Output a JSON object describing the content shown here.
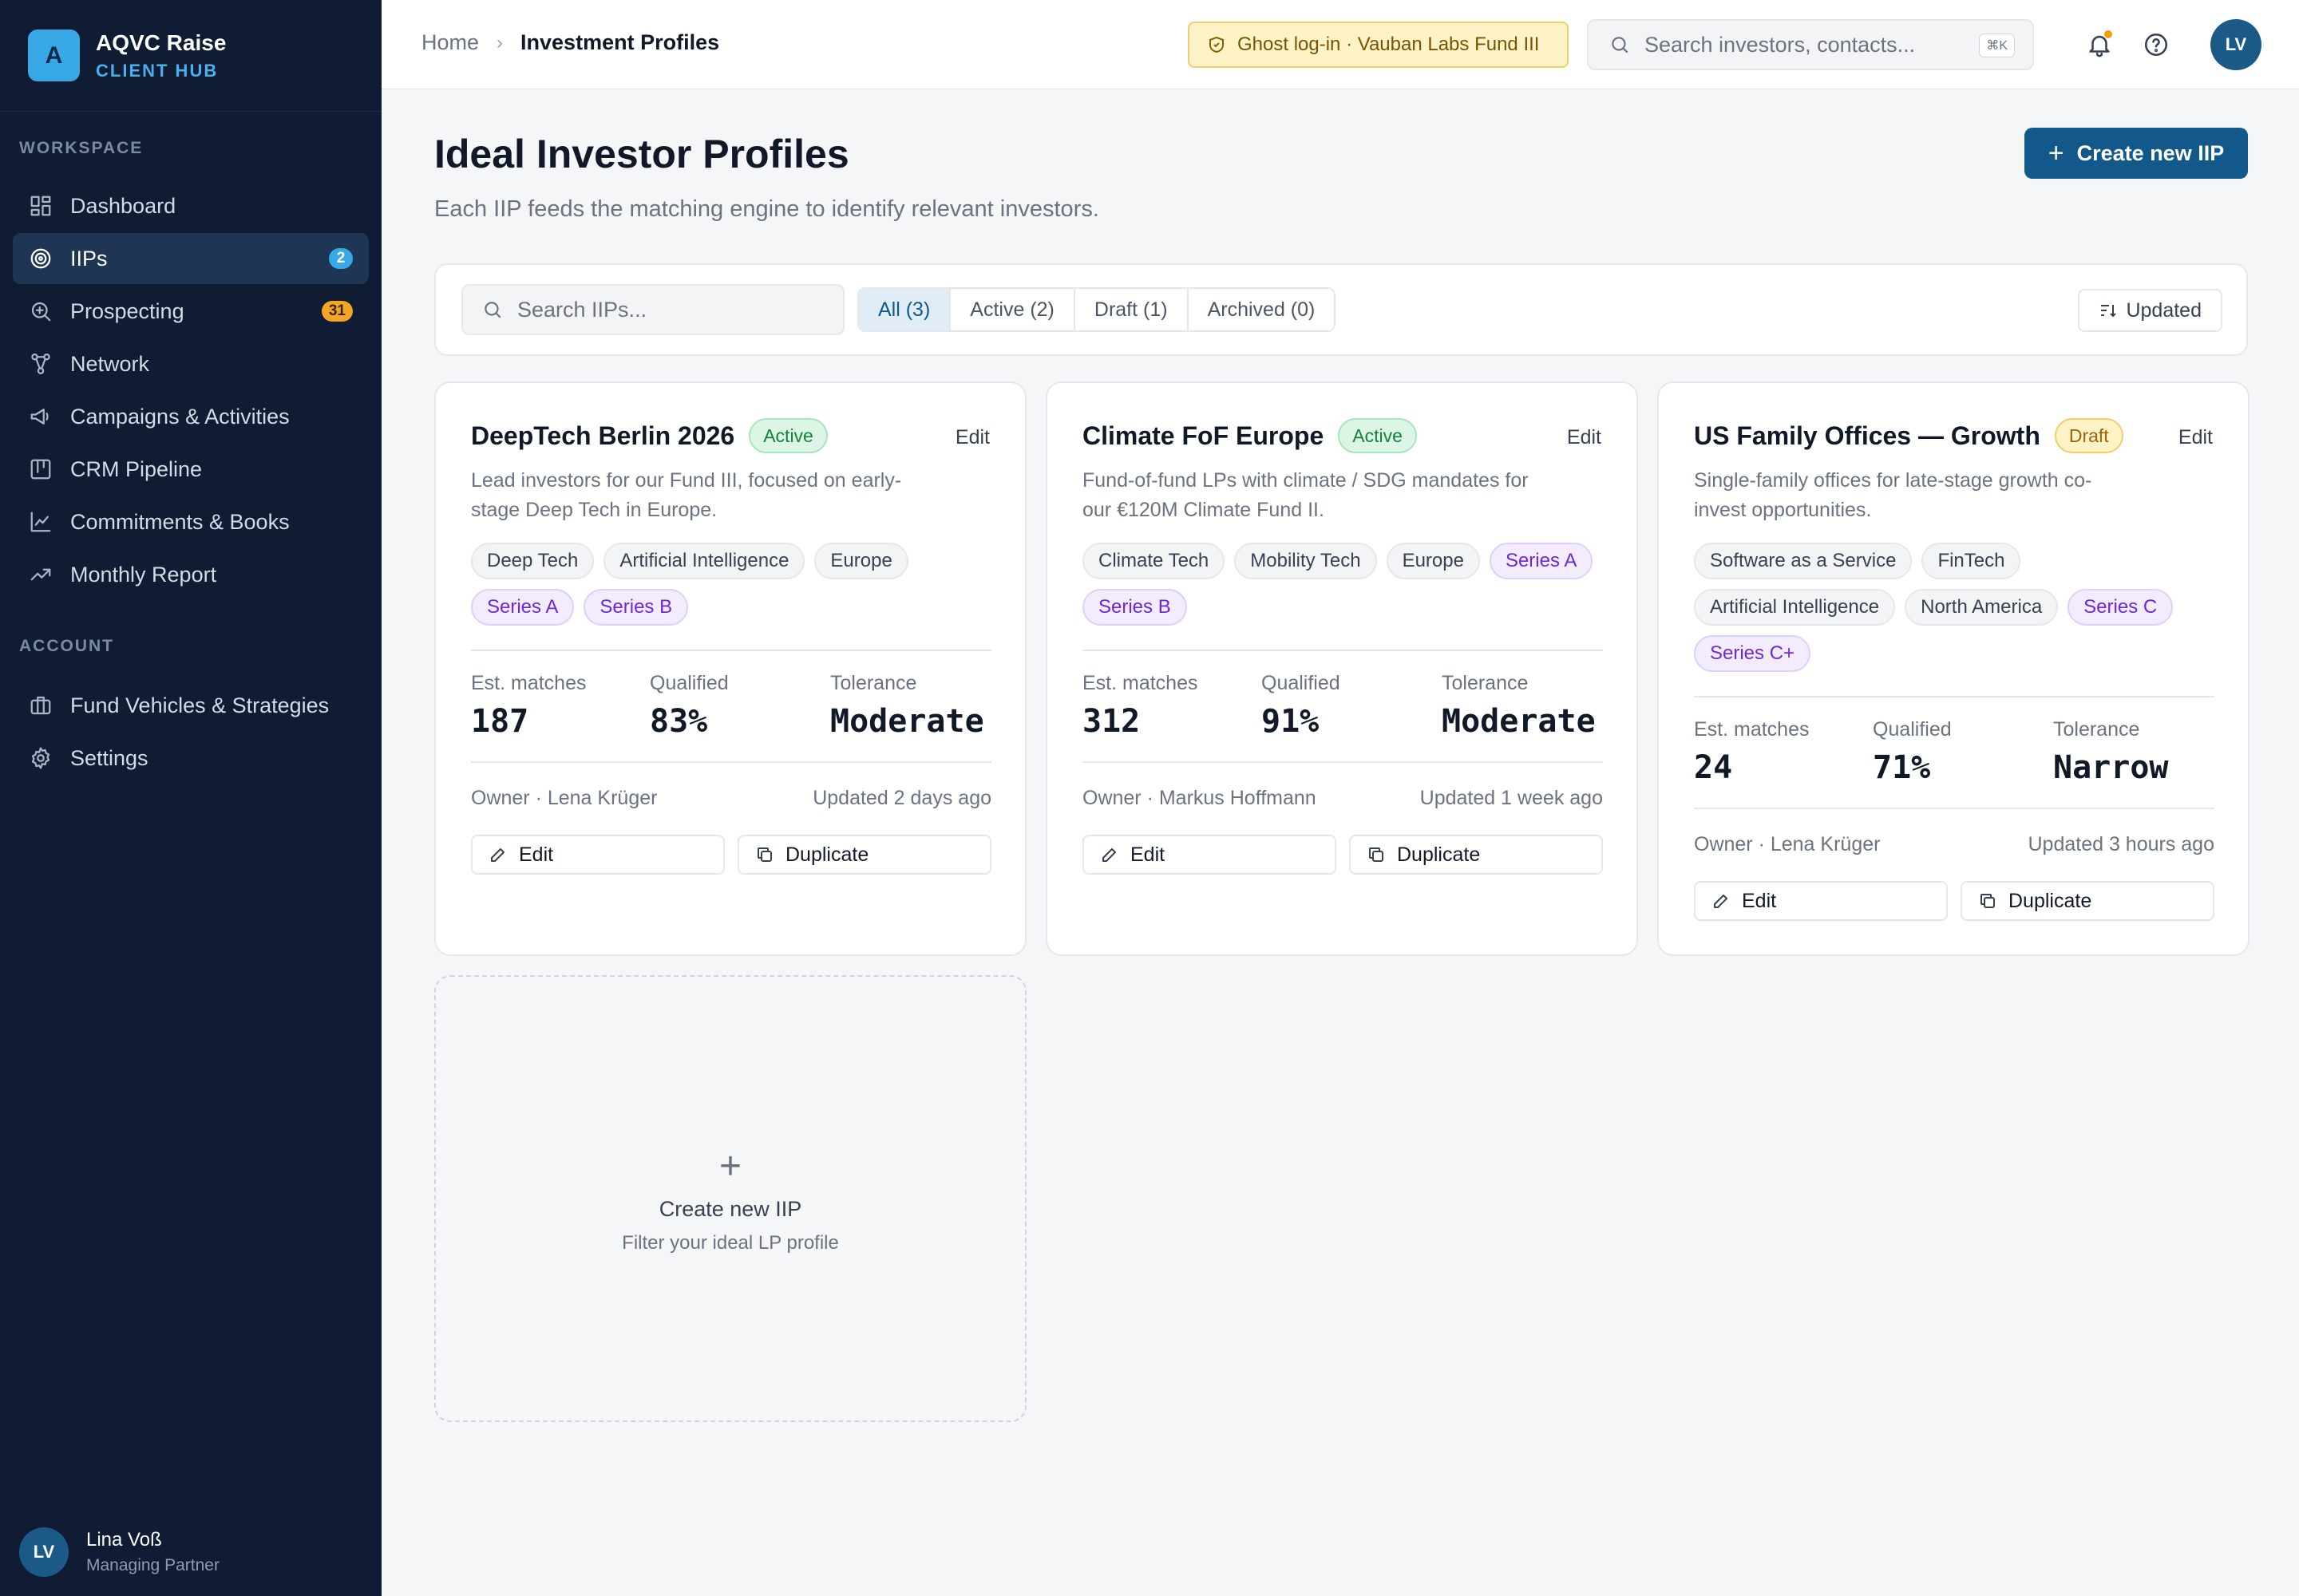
{
  "brand": {
    "logo_letter": "A",
    "name": "AQVC Raise",
    "subtitle": "CLIENT HUB"
  },
  "sidebar": {
    "workspace_label": "WORKSPACE",
    "workspace_items": [
      {
        "label": "Dashboard",
        "icon": "dashboard-icon"
      },
      {
        "label": "IIPs",
        "icon": "target-icon",
        "badge": "2",
        "active": true
      },
      {
        "label": "Prospecting",
        "icon": "search-zoom-icon",
        "badge": "31"
      },
      {
        "label": "Network",
        "icon": "network-icon"
      },
      {
        "label": "Campaigns & Activities",
        "icon": "megaphone-icon"
      },
      {
        "label": "CRM Pipeline",
        "icon": "kanban-icon"
      },
      {
        "label": "Commitments & Books",
        "icon": "chart-line-icon"
      },
      {
        "label": "Monthly Report",
        "icon": "trending-up-icon"
      }
    ],
    "account_label": "ACCOUNT",
    "account_items": [
      {
        "label": "Fund Vehicles & Strategies",
        "icon": "briefcase-icon"
      },
      {
        "label": "Settings",
        "icon": "gear-icon"
      }
    ],
    "user": {
      "initials": "LV",
      "name": "Lina Voß",
      "role": "Managing Partner"
    }
  },
  "topbar": {
    "breadcrumb": {
      "home": "Home",
      "separator": "›",
      "current": "Investment Profiles"
    },
    "ghost_banner": "Ghost log-in · Vauban Labs Fund III",
    "search_placeholder": "Search investors, contacts...",
    "search_shortcut": "⌘K",
    "avatar_initials": "LV"
  },
  "page": {
    "title": "Ideal Investor Profiles",
    "subtitle": "Each IIP feeds the matching engine to identify relevant investors.",
    "create_button": "Create new IIP"
  },
  "filters": {
    "search_placeholder": "Search IIPs...",
    "segments": [
      {
        "label": "All (3)",
        "active": true
      },
      {
        "label": "Active (2)"
      },
      {
        "label": "Draft (1)"
      },
      {
        "label": "Archived (0)"
      }
    ],
    "sort_label": "Updated"
  },
  "cards": [
    {
      "title": "DeepTech Berlin 2026",
      "status": "Active",
      "edit_link": "Edit",
      "description": "Lead investors for our Fund III, focused on early-stage Deep Tech in Europe.",
      "tags": [
        {
          "label": "Deep Tech"
        },
        {
          "label": "Artificial Intelligence"
        },
        {
          "label": "Europe"
        },
        {
          "label": "Series A",
          "series": true
        },
        {
          "label": "Series B",
          "series": true
        }
      ],
      "stats": [
        {
          "label": "Est. matches",
          "value": "187"
        },
        {
          "label": "Qualified",
          "value": "83%"
        },
        {
          "label": "Tolerance",
          "value": "Moderate"
        }
      ],
      "owner": "Owner · Lena Krüger",
      "updated": "Updated 2 days ago",
      "edit_button": "Edit",
      "duplicate_button": "Duplicate"
    },
    {
      "title": "Climate FoF Europe",
      "status": "Active",
      "edit_link": "Edit",
      "description": "Fund-of-fund LPs with climate / SDG mandates for our €120M Climate Fund II.",
      "tags": [
        {
          "label": "Climate Tech"
        },
        {
          "label": "Mobility Tech"
        },
        {
          "label": "Europe"
        },
        {
          "label": "Series A",
          "series": true
        },
        {
          "label": "Series B",
          "series": true
        }
      ],
      "stats": [
        {
          "label": "Est. matches",
          "value": "312"
        },
        {
          "label": "Qualified",
          "value": "91%"
        },
        {
          "label": "Tolerance",
          "value": "Moderate"
        }
      ],
      "owner": "Owner · Markus Hoffmann",
      "updated": "Updated 1 week ago",
      "edit_button": "Edit",
      "duplicate_button": "Duplicate"
    },
    {
      "title": "US Family Offices — Growth",
      "status": "Draft",
      "edit_link": "Edit",
      "description": "Single-family offices for late-stage growth co-invest opportunities.",
      "tags": [
        {
          "label": "Software as a Service"
        },
        {
          "label": "FinTech"
        },
        {
          "label": "Artificial Intelligence"
        },
        {
          "label": "North America"
        },
        {
          "label": "Series C",
          "series": true
        },
        {
          "label": "Series C+",
          "series": true
        }
      ],
      "stats": [
        {
          "label": "Est. matches",
          "value": "24"
        },
        {
          "label": "Qualified",
          "value": "71%"
        },
        {
          "label": "Tolerance",
          "value": "Narrow"
        }
      ],
      "owner": "Owner · Lena Krüger",
      "updated": "Updated 3 hours ago",
      "edit_button": "Edit",
      "duplicate_button": "Duplicate"
    }
  ],
  "new_card": {
    "plus": "+",
    "title": "Create new IIP",
    "subtitle": "Filter your ideal LP profile"
  }
}
